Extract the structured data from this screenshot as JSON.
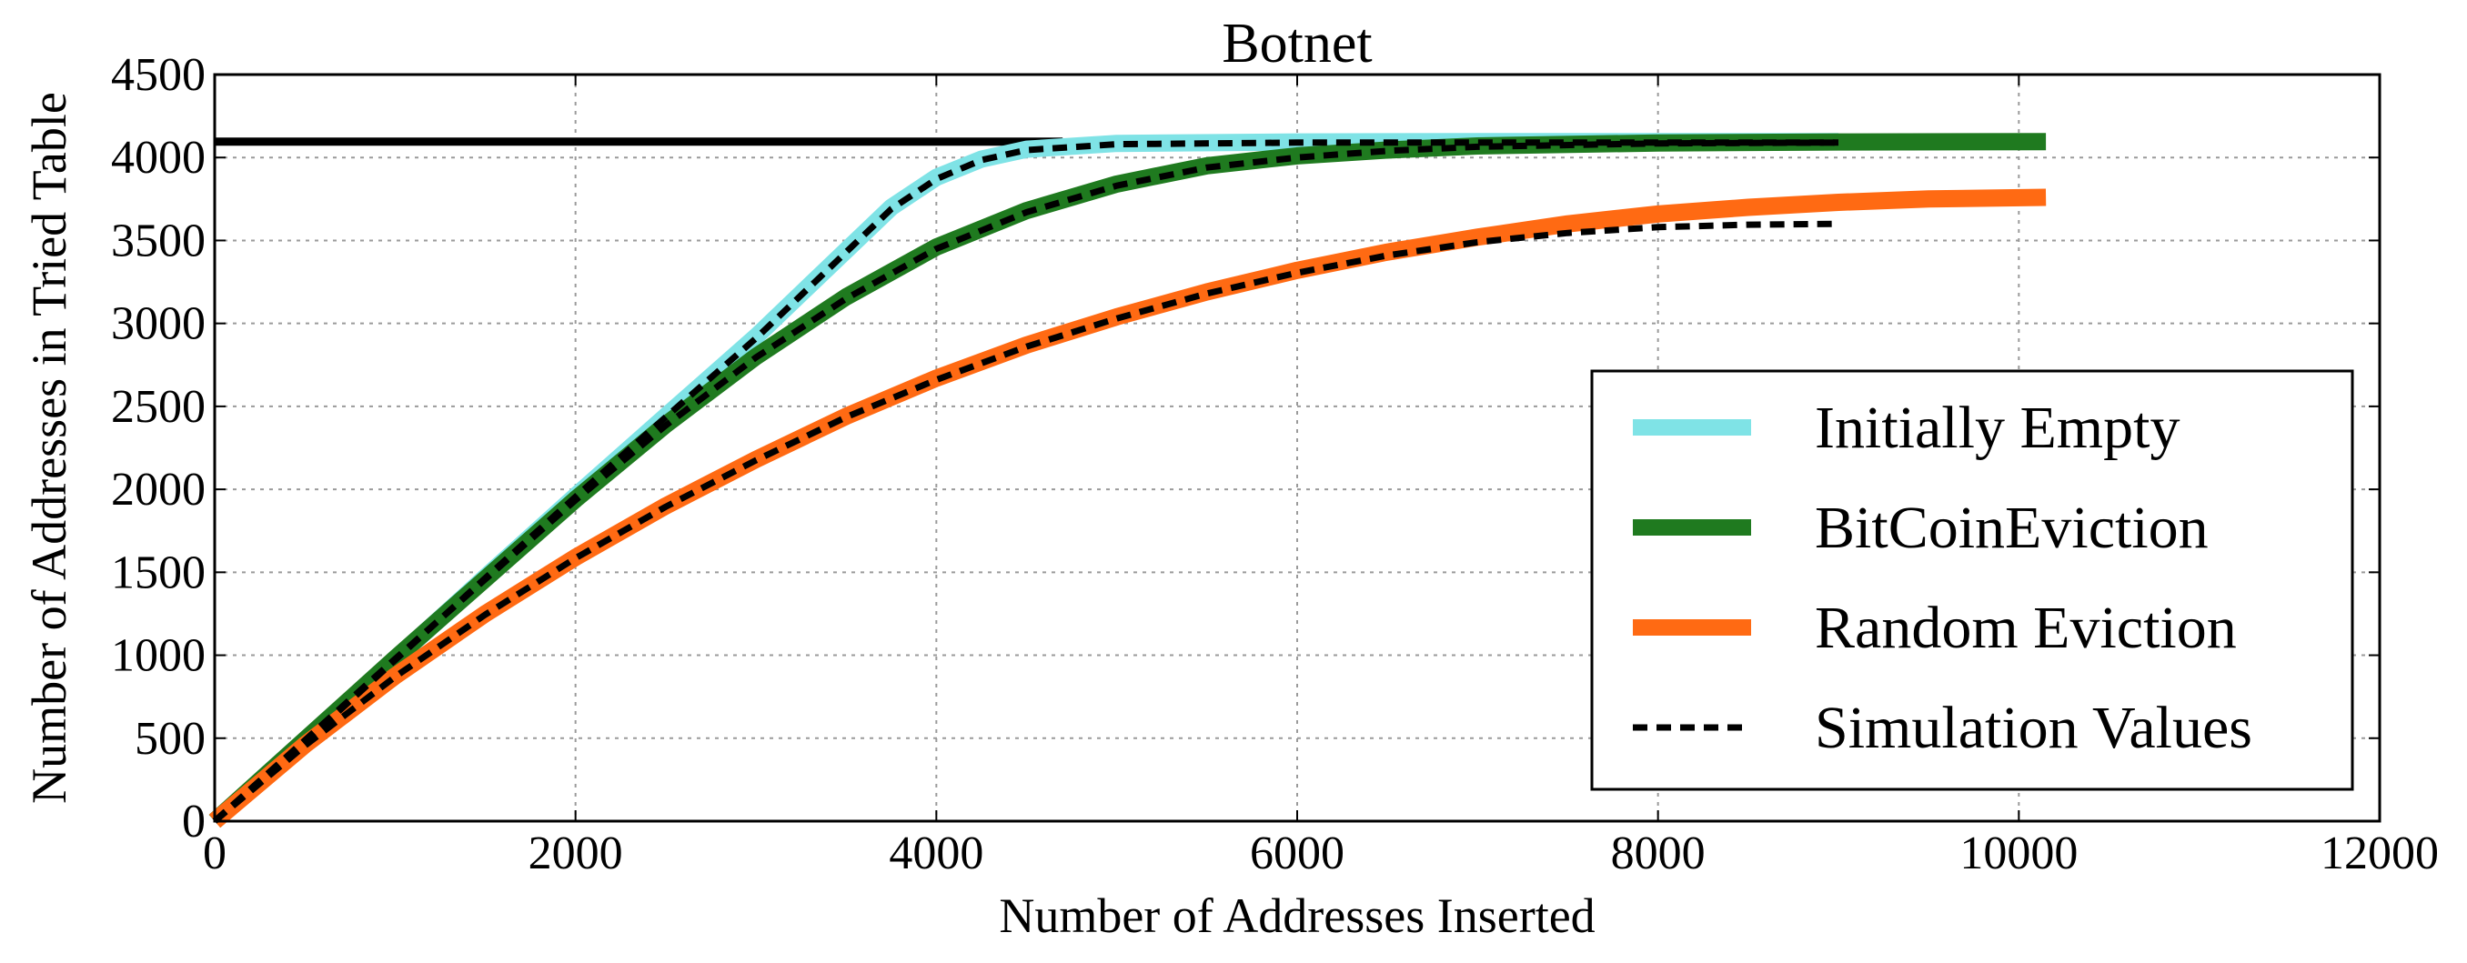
{
  "chart_data": {
    "type": "line",
    "title": "Botnet",
    "xlabel": "Number of Addresses Inserted",
    "ylabel": "Number of Addresses in Tried Table",
    "xlim": [
      0,
      12000
    ],
    "ylim": [
      0,
      4500
    ],
    "xticks": [
      0,
      2000,
      4000,
      6000,
      8000,
      10000,
      12000
    ],
    "yticks": [
      0,
      500,
      1000,
      1500,
      2000,
      2500,
      3000,
      3500,
      4000,
      4500
    ],
    "grid": true,
    "legend_position": "lower-right",
    "reference_line": {
      "y": 4096,
      "x_range": [
        0,
        4700
      ],
      "color": "#000000"
    },
    "series": [
      {
        "name": "Initially Empty",
        "color": "#7fe3e6",
        "style": "solid",
        "x": [
          0,
          500,
          1000,
          1500,
          2000,
          2500,
          3000,
          3250,
          3500,
          3750,
          4000,
          4250,
          4500,
          5000,
          6000,
          7000,
          8000,
          9000
        ],
        "y": [
          0,
          480,
          975,
          1470,
          1960,
          2440,
          2920,
          3180,
          3440,
          3700,
          3880,
          3990,
          4050,
          4085,
          4094,
          4096,
          4096,
          4096
        ]
      },
      {
        "name": "BitCoinEviction",
        "color": "#1f7a1f",
        "style": "solid",
        "x": [
          0,
          500,
          1000,
          1500,
          2000,
          2500,
          3000,
          3500,
          4000,
          4500,
          5000,
          5500,
          6000,
          6500,
          7000,
          8000,
          9000,
          10150
        ],
        "y": [
          0,
          490,
          980,
          1460,
          1940,
          2390,
          2800,
          3160,
          3460,
          3680,
          3840,
          3950,
          4010,
          4045,
          4070,
          4088,
          4094,
          4096
        ]
      },
      {
        "name": "Random Eviction",
        "color": "#ff6a13",
        "style": "solid",
        "x": [
          0,
          500,
          1000,
          1500,
          2000,
          2500,
          3000,
          3500,
          4000,
          4500,
          5000,
          5500,
          6000,
          6500,
          7000,
          7500,
          8000,
          8500,
          9000,
          9500,
          10150
        ],
        "y": [
          0,
          460,
          875,
          1250,
          1590,
          1900,
          2180,
          2440,
          2670,
          2870,
          3040,
          3190,
          3320,
          3430,
          3520,
          3600,
          3660,
          3700,
          3730,
          3750,
          3760
        ]
      },
      {
        "name": "Simulation Values",
        "color": "#000000",
        "style": "dashed",
        "x": [
          0,
          500,
          1000,
          1500,
          2000,
          2500,
          3000,
          3500,
          4000,
          4500,
          5000,
          5500,
          6000,
          6500,
          7000,
          7500,
          8000,
          8500,
          9000
        ],
        "y": [
          0,
          455,
          870,
          1245,
          1585,
          1895,
          2175,
          2435,
          2660,
          2860,
          3030,
          3180,
          3305,
          3410,
          3490,
          3545,
          3580,
          3595,
          3600
        ]
      },
      {
        "name": "",
        "color": "#000000",
        "style": "dashed",
        "x": [
          0,
          500,
          1000,
          1500,
          2000,
          2500,
          3000,
          3500,
          4000,
          4500,
          5000,
          5500,
          6000,
          6500,
          7000,
          8000,
          9000
        ],
        "y": [
          0,
          488,
          978,
          1458,
          1935,
          2385,
          2795,
          3150,
          3450,
          3670,
          3830,
          3940,
          4000,
          4040,
          4065,
          4085,
          4090
        ]
      },
      {
        "name": "",
        "color": "#000000",
        "style": "dashed",
        "x": [
          0,
          500,
          1000,
          1500,
          2000,
          2500,
          3000,
          3250,
          3500,
          3750,
          4000,
          4250,
          4500,
          5000,
          6000,
          7000,
          8000,
          9000
        ],
        "y": [
          0,
          478,
          970,
          1465,
          1955,
          2435,
          2910,
          3170,
          3430,
          3690,
          3870,
          3985,
          4045,
          4080,
          4090,
          4090,
          4090,
          4090
        ]
      }
    ],
    "legend": [
      {
        "label": "Initially Empty",
        "color": "#7fe3e6",
        "style": "solid"
      },
      {
        "label": "BitCoinEviction",
        "color": "#1f7a1f",
        "style": "solid"
      },
      {
        "label": "Random Eviction",
        "color": "#ff6a13",
        "style": "solid"
      },
      {
        "label": "Simulation Values",
        "color": "#000000",
        "style": "dashed"
      }
    ]
  }
}
